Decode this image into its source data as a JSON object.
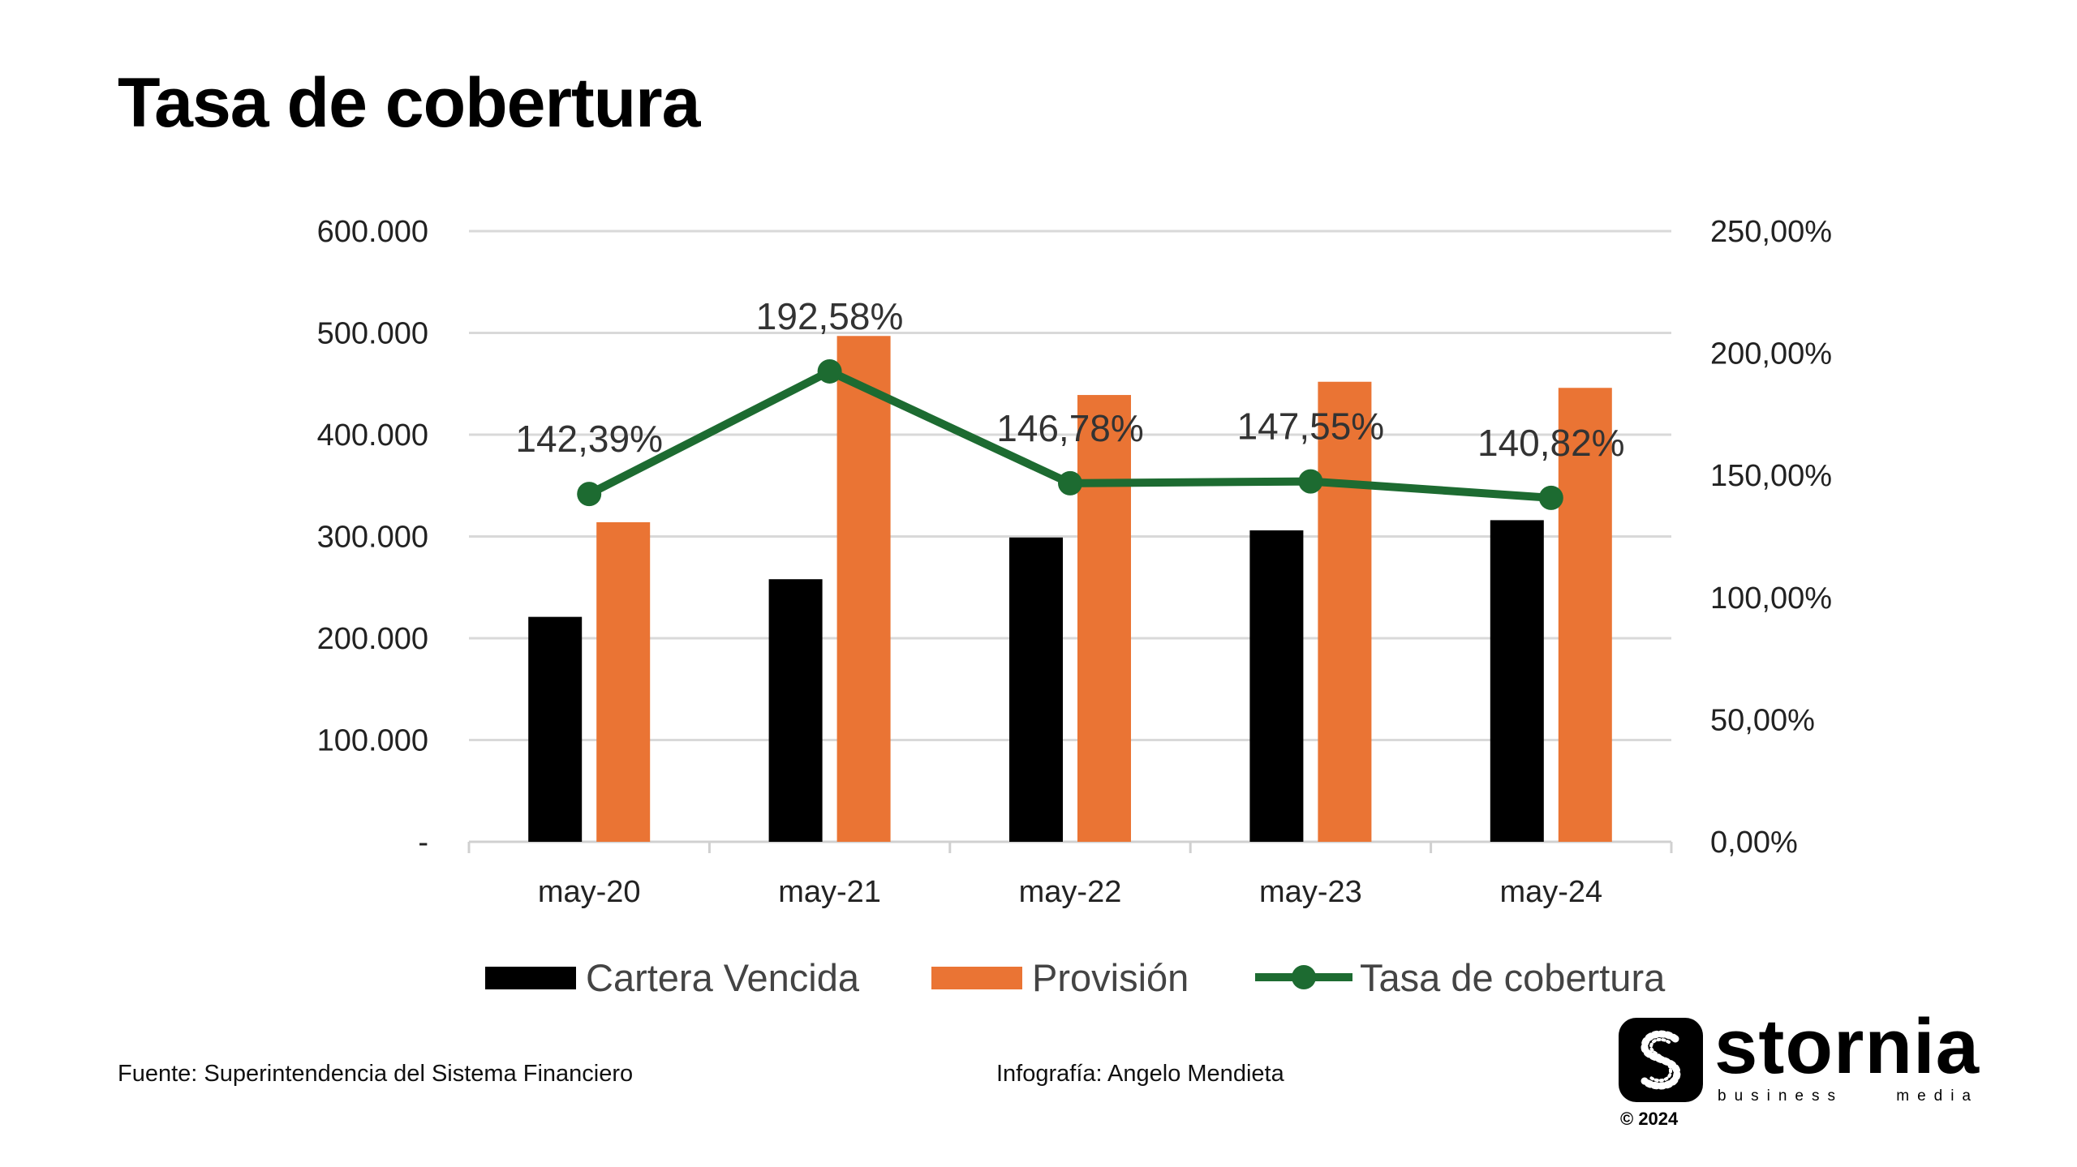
{
  "title": "Tasa de cobertura",
  "chart_data": {
    "type": "bar",
    "categories": [
      "may-20",
      "may-21",
      "may-22",
      "may-23",
      "may-24"
    ],
    "series": [
      {
        "name": "Cartera Vencida",
        "type": "bar",
        "axis": "left",
        "color": "#000000",
        "values": [
          221000,
          258000,
          299000,
          306000,
          316000
        ]
      },
      {
        "name": "Provisión",
        "type": "bar",
        "axis": "left",
        "color": "#ea7434",
        "values": [
          314000,
          497000,
          439000,
          452000,
          446000
        ]
      },
      {
        "name": "Tasa de cobertura",
        "type": "line",
        "axis": "right",
        "color": "#1d6b31",
        "values": [
          142.39,
          192.58,
          146.78,
          147.55,
          140.82
        ],
        "labels": [
          "142,39%",
          "192,58%",
          "146,78%",
          "147,55%",
          "140,82%"
        ]
      }
    ],
    "y_left": {
      "range": [
        0,
        600000
      ],
      "ticks": [
        0,
        100000,
        200000,
        300000,
        400000,
        500000,
        600000
      ],
      "tick_labels": [
        "-",
        "100.000",
        "200.000",
        "300.000",
        "400.000",
        "500.000",
        "600.000"
      ]
    },
    "y_right": {
      "range": [
        0,
        250
      ],
      "ticks": [
        0,
        50,
        100,
        150,
        200,
        250
      ],
      "tick_labels": [
        "0,00%",
        "50,00%",
        "100,00%",
        "150,00%",
        "200,00%",
        "250,00%"
      ]
    },
    "grid": true,
    "legend_position": "bottom"
  },
  "footer": {
    "source": "Fuente: Superintendencia del Sistema Financiero",
    "credit": "Infografía: Angelo Mendieta"
  },
  "logo": {
    "icon": "stornia-s-icon",
    "wordmark": "stornia",
    "tagline": [
      "business",
      "media"
    ],
    "copyright": "© 2024"
  }
}
